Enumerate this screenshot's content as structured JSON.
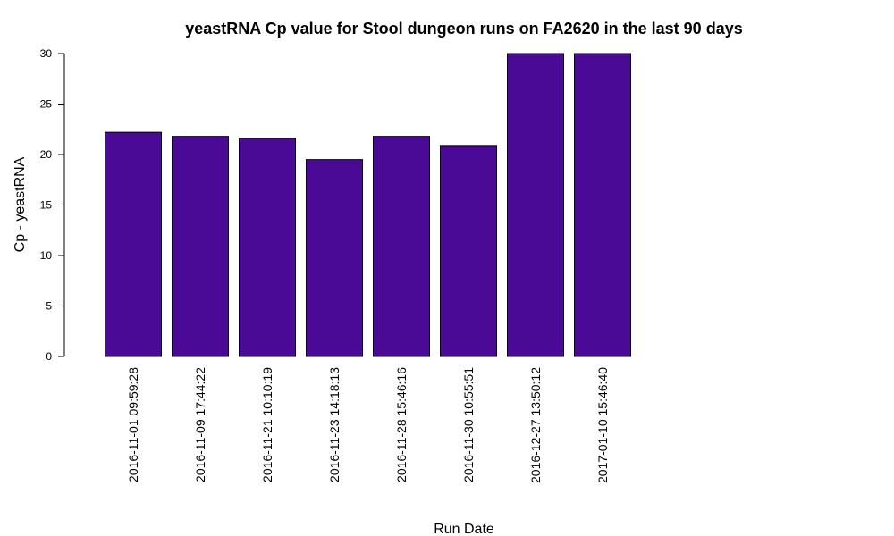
{
  "chart_data": {
    "type": "bar",
    "title": "yeastRNA Cp value for Stool dungeon runs on FA2620 in the last 90 days",
    "xlabel": "Run Date",
    "ylabel": "Cp - yeastRNA",
    "ylim": [
      0,
      30
    ],
    "yticks": [
      0,
      5,
      10,
      15,
      20,
      25,
      30
    ],
    "grid": false,
    "bar_color": "#4B0A96",
    "categories": [
      "2016-11-01 09:59:28",
      "2016-11-09 17:44:22",
      "2016-11-21 10:10:19",
      "2016-11-23 14:18:13",
      "2016-11-28 15:46:16",
      "2016-11-30 10:55:51",
      "2016-12-27 13:50:12",
      "2017-01-10 15:46:40"
    ],
    "values": [
      22.2,
      21.8,
      21.6,
      19.5,
      21.8,
      20.9,
      30.0,
      30.0
    ]
  }
}
